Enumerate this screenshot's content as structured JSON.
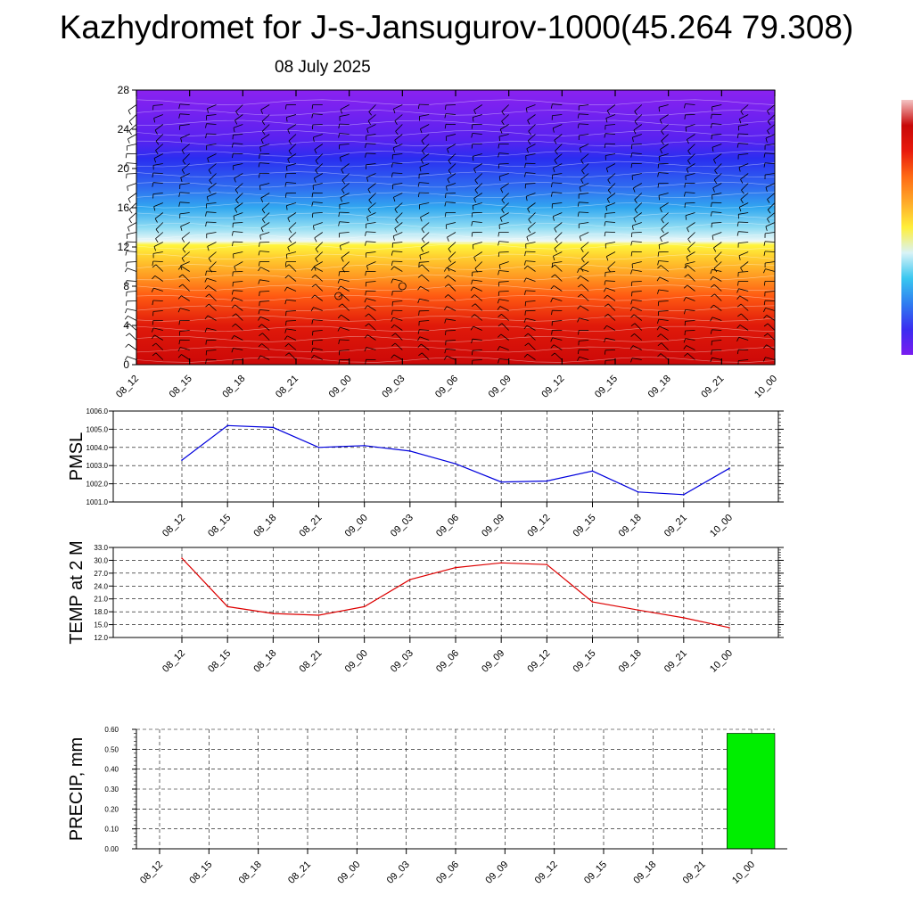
{
  "header": {
    "title": "Kazhydromet for J-s-Jansugurov-1000(45.264 79.308)",
    "subtitle": "08 July 2025"
  },
  "colors": {
    "pmsl_line": "#0000dd",
    "temp_line": "#dd0000",
    "precip_bar": "#00ee00",
    "wind_barb": "#000000",
    "isoline": "#ffffff"
  },
  "colorbar": {
    "stops": [
      "#7a1cf0",
      "#3a2df0",
      "#2f7cf0",
      "#39c7f0",
      "#d9f3f7",
      "#ffef3a",
      "#ffa928",
      "#ff6a14",
      "#e81a0c",
      "#c80808",
      "#f4c4c4"
    ]
  },
  "chart_data": [
    {
      "type": "heatmap",
      "name": "vertical-profile",
      "x": [
        "08_12",
        "08_15",
        "08_18",
        "08_21",
        "09_00",
        "09_03",
        "09_06",
        "09_09",
        "09_12",
        "09_15",
        "09_18",
        "09_21",
        "10_00"
      ],
      "yticks": [
        "0",
        "4",
        "8",
        "12",
        "16",
        "20",
        "24",
        "28"
      ],
      "ylim": [
        0,
        28
      ],
      "color_levels": [
        {
          "y": 0,
          "color": "#cc0808"
        },
        {
          "y": 4,
          "color": "#e01a0a"
        },
        {
          "y": 7,
          "color": "#ff5a12"
        },
        {
          "y": 9,
          "color": "#ff9a22"
        },
        {
          "y": 11,
          "color": "#ffd030"
        },
        {
          "y": 12.2,
          "color": "#fff53c"
        },
        {
          "y": 12.6,
          "color": "#eef8f8"
        },
        {
          "y": 14,
          "color": "#8fdcf3"
        },
        {
          "y": 16,
          "color": "#32a8f0"
        },
        {
          "y": 18,
          "color": "#2f6ef0"
        },
        {
          "y": 21,
          "color": "#2a2ef0"
        },
        {
          "y": 23,
          "color": "#5a22f0"
        },
        {
          "y": 28,
          "color": "#8a22f0"
        }
      ]
    },
    {
      "type": "line",
      "name": "pmsl",
      "ylabel": "PMSL",
      "x": [
        "08_12",
        "08_15",
        "08_18",
        "08_21",
        "09_00",
        "09_03",
        "09_06",
        "09_09",
        "09_12",
        "09_15",
        "09_18",
        "09_21",
        "10_00"
      ],
      "values": [
        1003.3,
        1005.2,
        1005.1,
        1004.0,
        1004.1,
        1003.8,
        1003.1,
        1002.1,
        1002.15,
        1002.7,
        1001.55,
        1001.4,
        1002.85
      ],
      "ylim": [
        1001.0,
        1006.0
      ],
      "yticks": [
        "1001.0",
        "1002.0",
        "1003.0",
        "1004.0",
        "1005.0",
        "1006.0"
      ],
      "grid": true
    },
    {
      "type": "line",
      "name": "temp-2m",
      "ylabel": "TEMP at 2 M",
      "x": [
        "08_12",
        "08_15",
        "08_18",
        "08_21",
        "09_00",
        "09_03",
        "09_06",
        "09_09",
        "09_12",
        "09_15",
        "09_18",
        "09_21",
        "10_00"
      ],
      "values": [
        30.5,
        19.2,
        17.6,
        17.2,
        19.2,
        25.5,
        28.3,
        29.4,
        29.0,
        20.3,
        18.4,
        16.6,
        14.3
      ],
      "ylim": [
        12.0,
        33.0
      ],
      "yticks": [
        "12.0",
        "15.0",
        "18.0",
        "21.0",
        "24.0",
        "27.0",
        "30.0",
        "33.0"
      ],
      "grid": true
    },
    {
      "type": "bar",
      "name": "precip",
      "ylabel": "PRECIP, mm",
      "categories": [
        "08_12",
        "08_15",
        "08_18",
        "08_21",
        "09_00",
        "09_03",
        "09_06",
        "09_09",
        "09_12",
        "09_15",
        "09_18",
        "09_21",
        "10_00"
      ],
      "values": [
        0,
        0,
        0,
        0,
        0,
        0,
        0,
        0,
        0,
        0,
        0,
        0,
        0.58
      ],
      "ylim": [
        0,
        0.6
      ],
      "yticks": [
        "0.00",
        "0.10",
        "0.20",
        "0.30",
        "0.40",
        "0.50",
        "0.60"
      ],
      "grid": true
    }
  ]
}
